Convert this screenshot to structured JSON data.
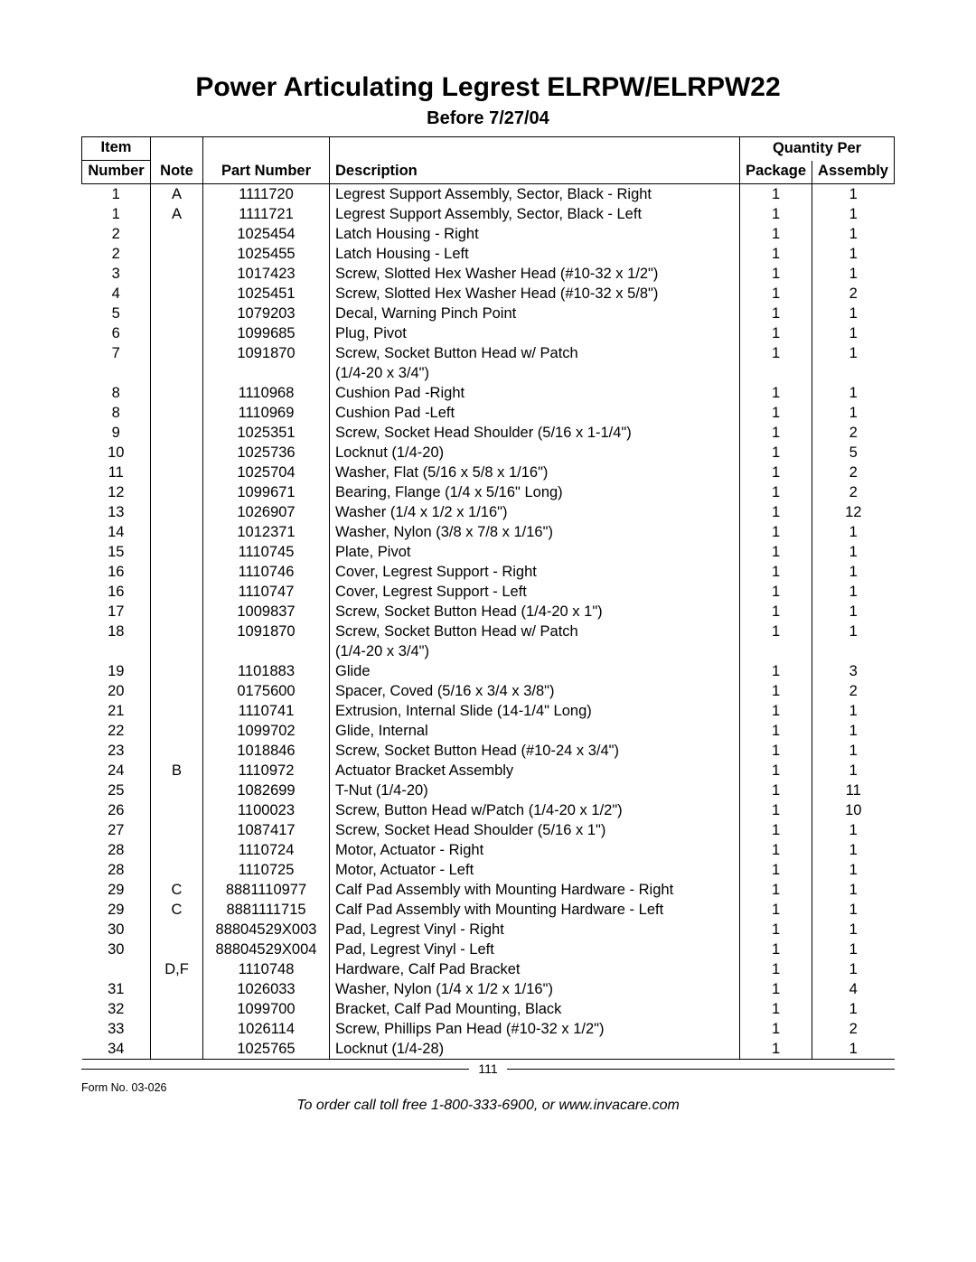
{
  "title": "Power Articulating Legrest ELRPW/ELRPW22",
  "subtitle": "Before 7/27/04",
  "columns": {
    "item_top": "Item",
    "item": "Number",
    "note": "Note",
    "part": "Part Number",
    "desc": "Description",
    "qty_group": "Quantity Per",
    "pkg": "Package",
    "asm": "Assembly"
  },
  "rows": [
    {
      "item": "1",
      "note": "A",
      "part": "1111720",
      "desc": "Legrest Support Assembly, Sector, Black - Right",
      "pkg": "1",
      "asm": "1"
    },
    {
      "item": "1",
      "note": "A",
      "part": "1111721",
      "desc": "Legrest Support Assembly, Sector, Black - Left",
      "pkg": "1",
      "asm": "1"
    },
    {
      "item": "2",
      "note": "",
      "part": "1025454",
      "desc": "Latch Housing - Right",
      "pkg": "1",
      "asm": "1"
    },
    {
      "item": "2",
      "note": "",
      "part": "1025455",
      "desc": "Latch Housing - Left",
      "pkg": "1",
      "asm": "1"
    },
    {
      "item": "3",
      "note": "",
      "part": "1017423",
      "desc": "Screw, Slotted Hex Washer Head (#10-32 x 1/2\")",
      "pkg": "1",
      "asm": "1"
    },
    {
      "item": "4",
      "note": "",
      "part": "1025451",
      "desc": "Screw, Slotted Hex Washer Head (#10-32 x 5/8\")",
      "pkg": "1",
      "asm": "2"
    },
    {
      "item": "5",
      "note": "",
      "part": "1079203",
      "desc": "Decal, Warning Pinch Point",
      "pkg": "1",
      "asm": "1"
    },
    {
      "item": "6",
      "note": "",
      "part": "1099685",
      "desc": "Plug, Pivot",
      "pkg": "1",
      "asm": "1"
    },
    {
      "item": "7",
      "note": "",
      "part": "1091870",
      "desc": "Screw, Socket Button Head w/ Patch\n(1/4-20 x 3/4\")",
      "pkg": "1",
      "asm": "1"
    },
    {
      "item": "8",
      "note": "",
      "part": "1110968",
      "desc": "Cushion Pad -Right",
      "pkg": "1",
      "asm": "1"
    },
    {
      "item": "8",
      "note": "",
      "part": "1110969",
      "desc": "Cushion Pad -Left",
      "pkg": "1",
      "asm": "1"
    },
    {
      "item": "9",
      "note": "",
      "part": "1025351",
      "desc": "Screw, Socket Head Shoulder (5/16 x 1-1/4\")",
      "pkg": "1",
      "asm": "2"
    },
    {
      "item": "10",
      "note": "",
      "part": "1025736",
      "desc": "Locknut (1/4-20)",
      "pkg": "1",
      "asm": "5"
    },
    {
      "item": "11",
      "note": "",
      "part": "1025704",
      "desc": "Washer, Flat (5/16 x 5/8 x 1/16\")",
      "pkg": "1",
      "asm": "2"
    },
    {
      "item": "12",
      "note": "",
      "part": "1099671",
      "desc": "Bearing, Flange (1/4 x 5/16\" Long)",
      "pkg": "1",
      "asm": "2"
    },
    {
      "item": "13",
      "note": "",
      "part": "1026907",
      "desc": "Washer (1/4 x 1/2 x 1/16\")",
      "pkg": "1",
      "asm": "12"
    },
    {
      "item": "14",
      "note": "",
      "part": "1012371",
      "desc": "Washer, Nylon (3/8 x 7/8 x 1/16\")",
      "pkg": "1",
      "asm": "1"
    },
    {
      "item": "15",
      "note": "",
      "part": "1110745",
      "desc": "Plate, Pivot",
      "pkg": "1",
      "asm": "1"
    },
    {
      "item": "16",
      "note": "",
      "part": "1110746",
      "desc": "Cover, Legrest Support - Right",
      "pkg": "1",
      "asm": "1"
    },
    {
      "item": "16",
      "note": "",
      "part": "1110747",
      "desc": "Cover, Legrest Support - Left",
      "pkg": "1",
      "asm": "1"
    },
    {
      "item": "17",
      "note": "",
      "part": "1009837",
      "desc": "Screw, Socket Button Head (1/4-20 x 1\")",
      "pkg": "1",
      "asm": "1"
    },
    {
      "item": "18",
      "note": "",
      "part": "1091870",
      "desc": "Screw, Socket Button Head w/ Patch\n(1/4-20 x 3/4\")",
      "pkg": "1",
      "asm": "1"
    },
    {
      "item": "19",
      "note": "",
      "part": "1101883",
      "desc": "Glide",
      "pkg": "1",
      "asm": "3"
    },
    {
      "item": "20",
      "note": "",
      "part": "0175600",
      "desc": "Spacer, Coved (5/16 x 3/4 x 3/8\")",
      "pkg": "1",
      "asm": "2"
    },
    {
      "item": "21",
      "note": "",
      "part": "1110741",
      "desc": "Extrusion, Internal Slide (14-1/4\" Long)",
      "pkg": "1",
      "asm": "1"
    },
    {
      "item": "22",
      "note": "",
      "part": "1099702",
      "desc": "Glide, Internal",
      "pkg": "1",
      "asm": "1"
    },
    {
      "item": "23",
      "note": "",
      "part": "1018846",
      "desc": "Screw, Socket Button Head (#10-24 x 3/4\")",
      "pkg": "1",
      "asm": "1"
    },
    {
      "item": "24",
      "note": "B",
      "part": "1110972",
      "desc": "Actuator Bracket Assembly",
      "pkg": "1",
      "asm": "1"
    },
    {
      "item": "25",
      "note": "",
      "part": "1082699",
      "desc": "T-Nut (1/4-20)",
      "pkg": "1",
      "asm": "11"
    },
    {
      "item": "26",
      "note": "",
      "part": "1100023",
      "desc": "Screw, Button Head w/Patch (1/4-20 x 1/2\")",
      "pkg": "1",
      "asm": "10"
    },
    {
      "item": "27",
      "note": "",
      "part": "1087417",
      "desc": "Screw, Socket Head Shoulder (5/16 x 1\")",
      "pkg": "1",
      "asm": "1"
    },
    {
      "item": "28",
      "note": "",
      "part": "1110724",
      "desc": "Motor, Actuator - Right",
      "pkg": "1",
      "asm": "1"
    },
    {
      "item": "28",
      "note": "",
      "part": "1110725",
      "desc": "Motor, Actuator - Left",
      "pkg": "1",
      "asm": "1"
    },
    {
      "item": "29",
      "note": "C",
      "part": "8881110977",
      "desc": "Calf Pad Assembly with Mounting Hardware - Right",
      "pkg": "1",
      "asm": "1"
    },
    {
      "item": "29",
      "note": "C",
      "part": "8881111715",
      "desc": "Calf Pad Assembly with Mounting Hardware - Left",
      "pkg": "1",
      "asm": "1"
    },
    {
      "item": "30",
      "note": "",
      "part": "88804529X003",
      "desc": "Pad, Legrest Vinyl - Right",
      "pkg": "1",
      "asm": "1"
    },
    {
      "item": "30",
      "note": "",
      "part": "88804529X004",
      "desc": "Pad, Legrest Vinyl - Left",
      "pkg": "1",
      "asm": "1"
    },
    {
      "item": "",
      "note": "D,F",
      "part": "1110748",
      "desc": "Hardware, Calf Pad Bracket",
      "pkg": "1",
      "asm": "1"
    },
    {
      "item": "31",
      "note": "",
      "part": "1026033",
      "desc": "Washer, Nylon (1/4 x 1/2 x 1/16\")",
      "pkg": "1",
      "asm": "4"
    },
    {
      "item": "32",
      "note": "",
      "part": "1099700",
      "desc": "Bracket, Calf Pad Mounting, Black",
      "pkg": "1",
      "asm": "1"
    },
    {
      "item": "33",
      "note": "",
      "part": "1026114",
      "desc": "Screw, Phillips Pan Head (#10-32 x 1/2\")",
      "pkg": "1",
      "asm": "2"
    },
    {
      "item": "34",
      "note": "",
      "part": "1025765",
      "desc": "Locknut (1/4-28)",
      "pkg": "1",
      "asm": "1"
    }
  ],
  "footer": {
    "page": "111",
    "form": "Form No. 03-026",
    "order": "To order call toll free 1-800-333-6900, or www.invacare.com"
  }
}
